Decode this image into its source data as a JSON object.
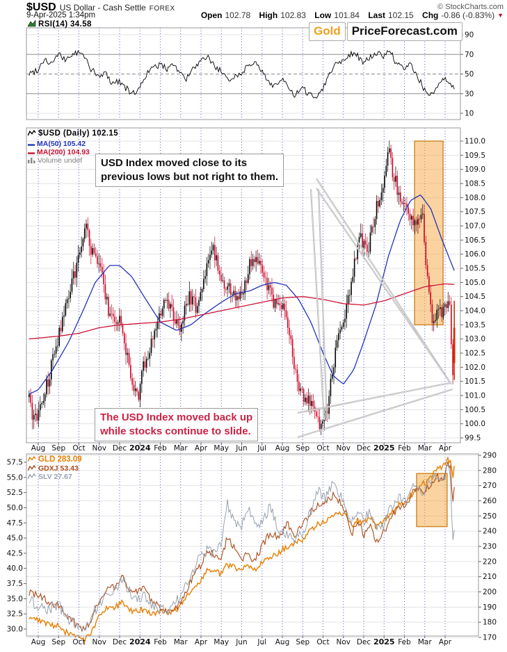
{
  "header": {
    "symbol": "$USD",
    "name": "US Dollar - Cash Settle",
    "exchange": "FOREX",
    "credit": "© StockCharts.com",
    "datetime": "9-Apr-2025 1:34pm",
    "quote": {
      "open_label": "Open",
      "open": "102.78",
      "high_label": "High",
      "high": "102.83",
      "low_label": "Low",
      "low": "101.84",
      "last_label": "Last",
      "last": "102.15",
      "chg_label": "Chg",
      "chg": "-0.86 (-0.83%)",
      "chg_direction": "down"
    }
  },
  "watermark": {
    "part1": "Gold",
    "part2": "PriceForecast.com"
  },
  "legends": {
    "rsi": "RSI(14) 34.58",
    "price": "$USD (Daily) 102.15",
    "ma50": "MA(50) 105.42",
    "ma200": "MA(200) 104.93",
    "volume": "Volume undef",
    "gld": "GLD 283.09",
    "gdxj": "GDXJ 53.43",
    "slv": "SLV 27.67"
  },
  "annotations": {
    "usd_box": {
      "line1": "USD Index moved close to its",
      "line2": "previous lows but not right to them.",
      "color": "#111111"
    },
    "stocks_box": {
      "line1": "The USD Index moved back up",
      "line2": "while stocks continue to slide.",
      "color": "#cc2244"
    }
  },
  "x_axis": {
    "labels": [
      "Aug",
      "Sep",
      "Oct",
      "Nov",
      "Dec",
      "2024",
      "Feb",
      "Mar",
      "Apr",
      "May",
      "Jun",
      "Jul",
      "Aug",
      "Sep",
      "Oct",
      "Nov",
      "Dec",
      "2025",
      "Feb",
      "Mar",
      "Apr"
    ],
    "bold_labels": [
      "2024",
      "2025"
    ]
  },
  "colors": {
    "candle_up": "#000000",
    "candle_down": "#cc0022",
    "last_candle": "#d43000",
    "ma50": "#2233bb",
    "ma200": "#cc1133",
    "gld": "#e87f00",
    "gdxj": "#aa4a17",
    "slv": "#97a1ae",
    "rsi_line": "#000000",
    "highlight_fill": "#f5a742",
    "highlight_stroke": "#d08a2e",
    "grid_h": "#e3e3e3",
    "grid_v": "#3b3bcc",
    "panel_border": "#999999",
    "callout": "#b5b5b5",
    "axis_text": "#111111"
  },
  "chart_data": [
    {
      "type": "line",
      "panel": "rsi",
      "name": "RSI(14)",
      "last": 34.58,
      "ylim": [
        10,
        90
      ],
      "yticks": [
        "90",
        "70",
        "50",
        "30",
        "10"
      ],
      "reference_lines": {
        "overbought": 70,
        "midline": 50,
        "oversold": 30
      },
      "x_unit": "months from Aug-2023",
      "x_months": [
        -0.45,
        0,
        0.3,
        0.6,
        1,
        1.3,
        1.6,
        2,
        2.3,
        2.6,
        3,
        3.3,
        3.6,
        4,
        4.3,
        4.6,
        5,
        5.3,
        5.6,
        6,
        6.3,
        6.6,
        7,
        7.3,
        7.6,
        8,
        8.3,
        8.6,
        9,
        9.3,
        9.6,
        10,
        10.3,
        10.6,
        11,
        11.3,
        11.6,
        12,
        12.3,
        12.6,
        13,
        13.3,
        13.6,
        14,
        14.3,
        14.6,
        15,
        15.3,
        15.6,
        16,
        16.3,
        16.6,
        17,
        17.3,
        17.6,
        18,
        18.3,
        18.6,
        19,
        19.3,
        19.6,
        20,
        20.2,
        20.45
      ],
      "values": [
        50,
        55,
        66,
        60,
        70,
        64,
        69,
        72,
        67,
        55,
        46,
        52,
        41,
        43,
        36,
        29,
        36,
        50,
        55,
        60,
        55,
        62,
        50,
        45,
        55,
        62,
        68,
        60,
        52,
        43,
        48,
        50,
        60,
        63,
        52,
        43,
        38,
        45,
        35,
        28,
        35,
        30,
        26,
        36,
        50,
        60,
        65,
        70,
        72,
        60,
        67,
        71,
        69,
        74,
        60,
        55,
        60,
        50,
        33,
        28,
        36,
        45,
        40,
        34.58
      ]
    },
    {
      "type": "candlestick",
      "panel": "price",
      "name": "$USD Daily",
      "last": 102.15,
      "ylim": [
        99.5,
        110.0
      ],
      "yticks": [
        "110.0",
        "109.5",
        "109.0",
        "108.5",
        "108.0",
        "107.5",
        "107.0",
        "106.5",
        "106.0",
        "105.5",
        "105.0",
        "104.5",
        "104.0",
        "103.5",
        "103.0",
        "102.5",
        "102.0",
        "101.5",
        "101.0",
        "100.5",
        "100.0",
        "99.5"
      ],
      "x_unit": "months from Aug-2023",
      "close_anchors": {
        "x_months": [
          -0.45,
          -0.2,
          0,
          0.5,
          1,
          1.5,
          2,
          2.3,
          2.6,
          3,
          3.5,
          4,
          4.5,
          4.9,
          5.2,
          5.8,
          6.2,
          6.6,
          7,
          7.4,
          7.8,
          8.2,
          8.6,
          9,
          9.5,
          10,
          10.4,
          10.8,
          11.2,
          11.6,
          12,
          12.4,
          12.8,
          13.2,
          13.6,
          13.9,
          14.2,
          14.6,
          15,
          15.4,
          15.8,
          16.2,
          16.6,
          17,
          17.2,
          17.4,
          17.8,
          18.2,
          18.6,
          18.9,
          19.1,
          19.3,
          19.5,
          19.7,
          19.9,
          20.1,
          20.25,
          20.38,
          20.45
        ],
        "values": [
          100.8,
          100.1,
          100.3,
          101.6,
          103.1,
          104.6,
          105.9,
          107.1,
          106.2,
          105.6,
          103.9,
          103.6,
          101.9,
          100.9,
          102.1,
          103.4,
          104.3,
          103.9,
          103.3,
          104.6,
          104.1,
          105.3,
          106.2,
          105.1,
          104.6,
          104.5,
          105.6,
          105.8,
          104.9,
          104.3,
          104.2,
          102.9,
          101.1,
          100.9,
          100.4,
          99.9,
          100.5,
          102.6,
          103.6,
          105.1,
          106.6,
          106.1,
          107.6,
          108.4,
          109.7,
          109.0,
          107.9,
          107.6,
          106.9,
          107.4,
          105.3,
          103.9,
          103.6,
          104.1,
          103.9,
          104.4,
          103.9,
          101.8,
          102.15
        ]
      },
      "ma50": {
        "name": "MA(50)",
        "last": 105.42,
        "x_months": [
          -0.45,
          0,
          0.7,
          1.5,
          2.2,
          2.8,
          3.5,
          4,
          4.6,
          5.2,
          6,
          6.8,
          7.5,
          8.2,
          9,
          9.7,
          10.4,
          11,
          11.6,
          12.2,
          12.8,
          13.4,
          14,
          14.5,
          15,
          15.5,
          16,
          16.6,
          17.2,
          17.8,
          18.3,
          18.8,
          19.3,
          19.8,
          20.45
        ],
        "values": [
          101.05,
          101.2,
          101.9,
          102.9,
          104.0,
          105.0,
          105.6,
          105.6,
          105.2,
          104.5,
          103.6,
          103.3,
          103.5,
          103.9,
          104.3,
          104.6,
          104.7,
          104.9,
          105.0,
          104.9,
          104.4,
          103.6,
          102.5,
          101.7,
          101.4,
          101.9,
          102.9,
          104.2,
          105.9,
          107.2,
          107.9,
          108.1,
          107.6,
          106.6,
          105.42
        ]
      },
      "ma200": {
        "name": "MA(200)",
        "last": 104.93,
        "x_months": [
          -0.45,
          1,
          2,
          3,
          4,
          5,
          6,
          7,
          8,
          9,
          10,
          11,
          12,
          13,
          14,
          15,
          16,
          17,
          18,
          19,
          20,
          20.45
        ],
        "values": [
          103.0,
          103.1,
          103.2,
          103.4,
          103.5,
          103.55,
          103.6,
          103.7,
          103.85,
          104.0,
          104.15,
          104.3,
          104.45,
          104.5,
          104.4,
          104.25,
          104.2,
          104.35,
          104.6,
          104.85,
          104.95,
          104.93
        ]
      },
      "highlight_box": {
        "x0_month": 18.5,
        "x1_month": 19.9,
        "price_low": 103.5,
        "price_high": 110.0
      }
    },
    {
      "type": "line",
      "panel": "lower",
      "yticks_left": [
        "57.5",
        "55.0",
        "52.5",
        "50.0",
        "47.5",
        "45.0",
        "42.5",
        "40.0",
        "37.5",
        "35.0",
        "32.5",
        "30.0"
      ],
      "yticks_right": [
        "290",
        "280",
        "270",
        "260",
        "250",
        "240",
        "230",
        "220",
        "210",
        "200",
        "190",
        "180",
        "170"
      ],
      "x_unit": "months from Aug-2023",
      "x_months": [
        -0.45,
        0,
        0.5,
        1,
        1.5,
        2,
        2.3,
        2.7,
        3,
        3.4,
        3.8,
        4.1,
        4.4,
        4.8,
        5.2,
        5.6,
        6,
        6.5,
        7,
        7.5,
        8,
        8.3,
        8.6,
        9,
        9.3,
        9.6,
        10,
        10.3,
        10.6,
        11,
        11.4,
        11.8,
        12.2,
        12.6,
        13,
        13.4,
        13.8,
        14.1,
        14.5,
        14.8,
        15.1,
        15.4,
        15.7,
        16,
        16.3,
        16.6,
        17,
        17.4,
        17.8,
        18.1,
        18.5,
        18.9,
        19.2,
        19.6,
        19.9,
        20.1,
        20.25,
        20.38,
        20.45
      ],
      "series": [
        {
          "name": "GLD",
          "last": 283.09,
          "axis": "right",
          "ylim": [
            170,
            290
          ],
          "values": [
            183,
            181,
            178,
            177,
            172,
            169,
            168,
            176,
            184,
            189,
            190,
            193,
            188,
            187,
            189,
            186,
            187,
            185,
            191,
            200,
            207,
            215,
            213,
            212,
            218,
            216,
            215,
            218,
            214,
            220,
            223,
            225,
            230,
            232,
            234,
            241,
            245,
            246,
            251,
            253,
            250,
            243,
            248,
            245,
            249,
            243,
            246,
            253,
            258,
            259,
            267,
            271,
            273,
            281,
            283,
            288,
            286,
            276,
            283.09
          ]
        },
        {
          "name": "GDXJ",
          "last": 53.43,
          "axis": "left",
          "ylim": [
            30,
            57.5
          ],
          "values": [
            36,
            35.5,
            34.5,
            34,
            32,
            30.3,
            29.8,
            32.5,
            34.5,
            36.5,
            37,
            39,
            36.5,
            36,
            36.5,
            34.5,
            33.5,
            32.5,
            34.5,
            38,
            40.5,
            43,
            42.5,
            42,
            45,
            43.5,
            41.5,
            43,
            41,
            43.5,
            46,
            45,
            47.5,
            45.5,
            47,
            49.5,
            50.5,
            51,
            52,
            51,
            49.5,
            45.5,
            48,
            45.5,
            47.5,
            44.5,
            46,
            49,
            50,
            50.5,
            53,
            52.5,
            53.5,
            55,
            54.5,
            56.8,
            57.2,
            51,
            53.43
          ]
        },
        {
          "name": "SLV",
          "last": 27.67,
          "axis": "hidden",
          "ylim": [
            20,
            33
          ],
          "values": [
            22.6,
            22.3,
            22.0,
            22.3,
            21.2,
            20.8,
            20.7,
            21.8,
            22.3,
            23.2,
            23.5,
            24.2,
            23.5,
            22.8,
            23.0,
            22.2,
            22.0,
            21.9,
            23.0,
            24.5,
            25.8,
            26.3,
            26.0,
            26.5,
            29.5,
            28.3,
            28.0,
            29.3,
            28.2,
            28.0,
            29.5,
            27.6,
            27.3,
            26.8,
            27.5,
            29.0,
            30.5,
            29.8,
            31.2,
            30.3,
            29.5,
            28.0,
            29.3,
            28.3,
            29.0,
            27.8,
            28.0,
            29.5,
            30.0,
            29.8,
            30.8,
            30.3,
            31.0,
            31.6,
            31.2,
            32.0,
            31.6,
            26.5,
            27.67
          ]
        }
      ],
      "highlight_box": {
        "x0_month": 18.6,
        "x1_month": 20.1,
        "gld_low": 243,
        "gld_high": 278
      }
    }
  ]
}
